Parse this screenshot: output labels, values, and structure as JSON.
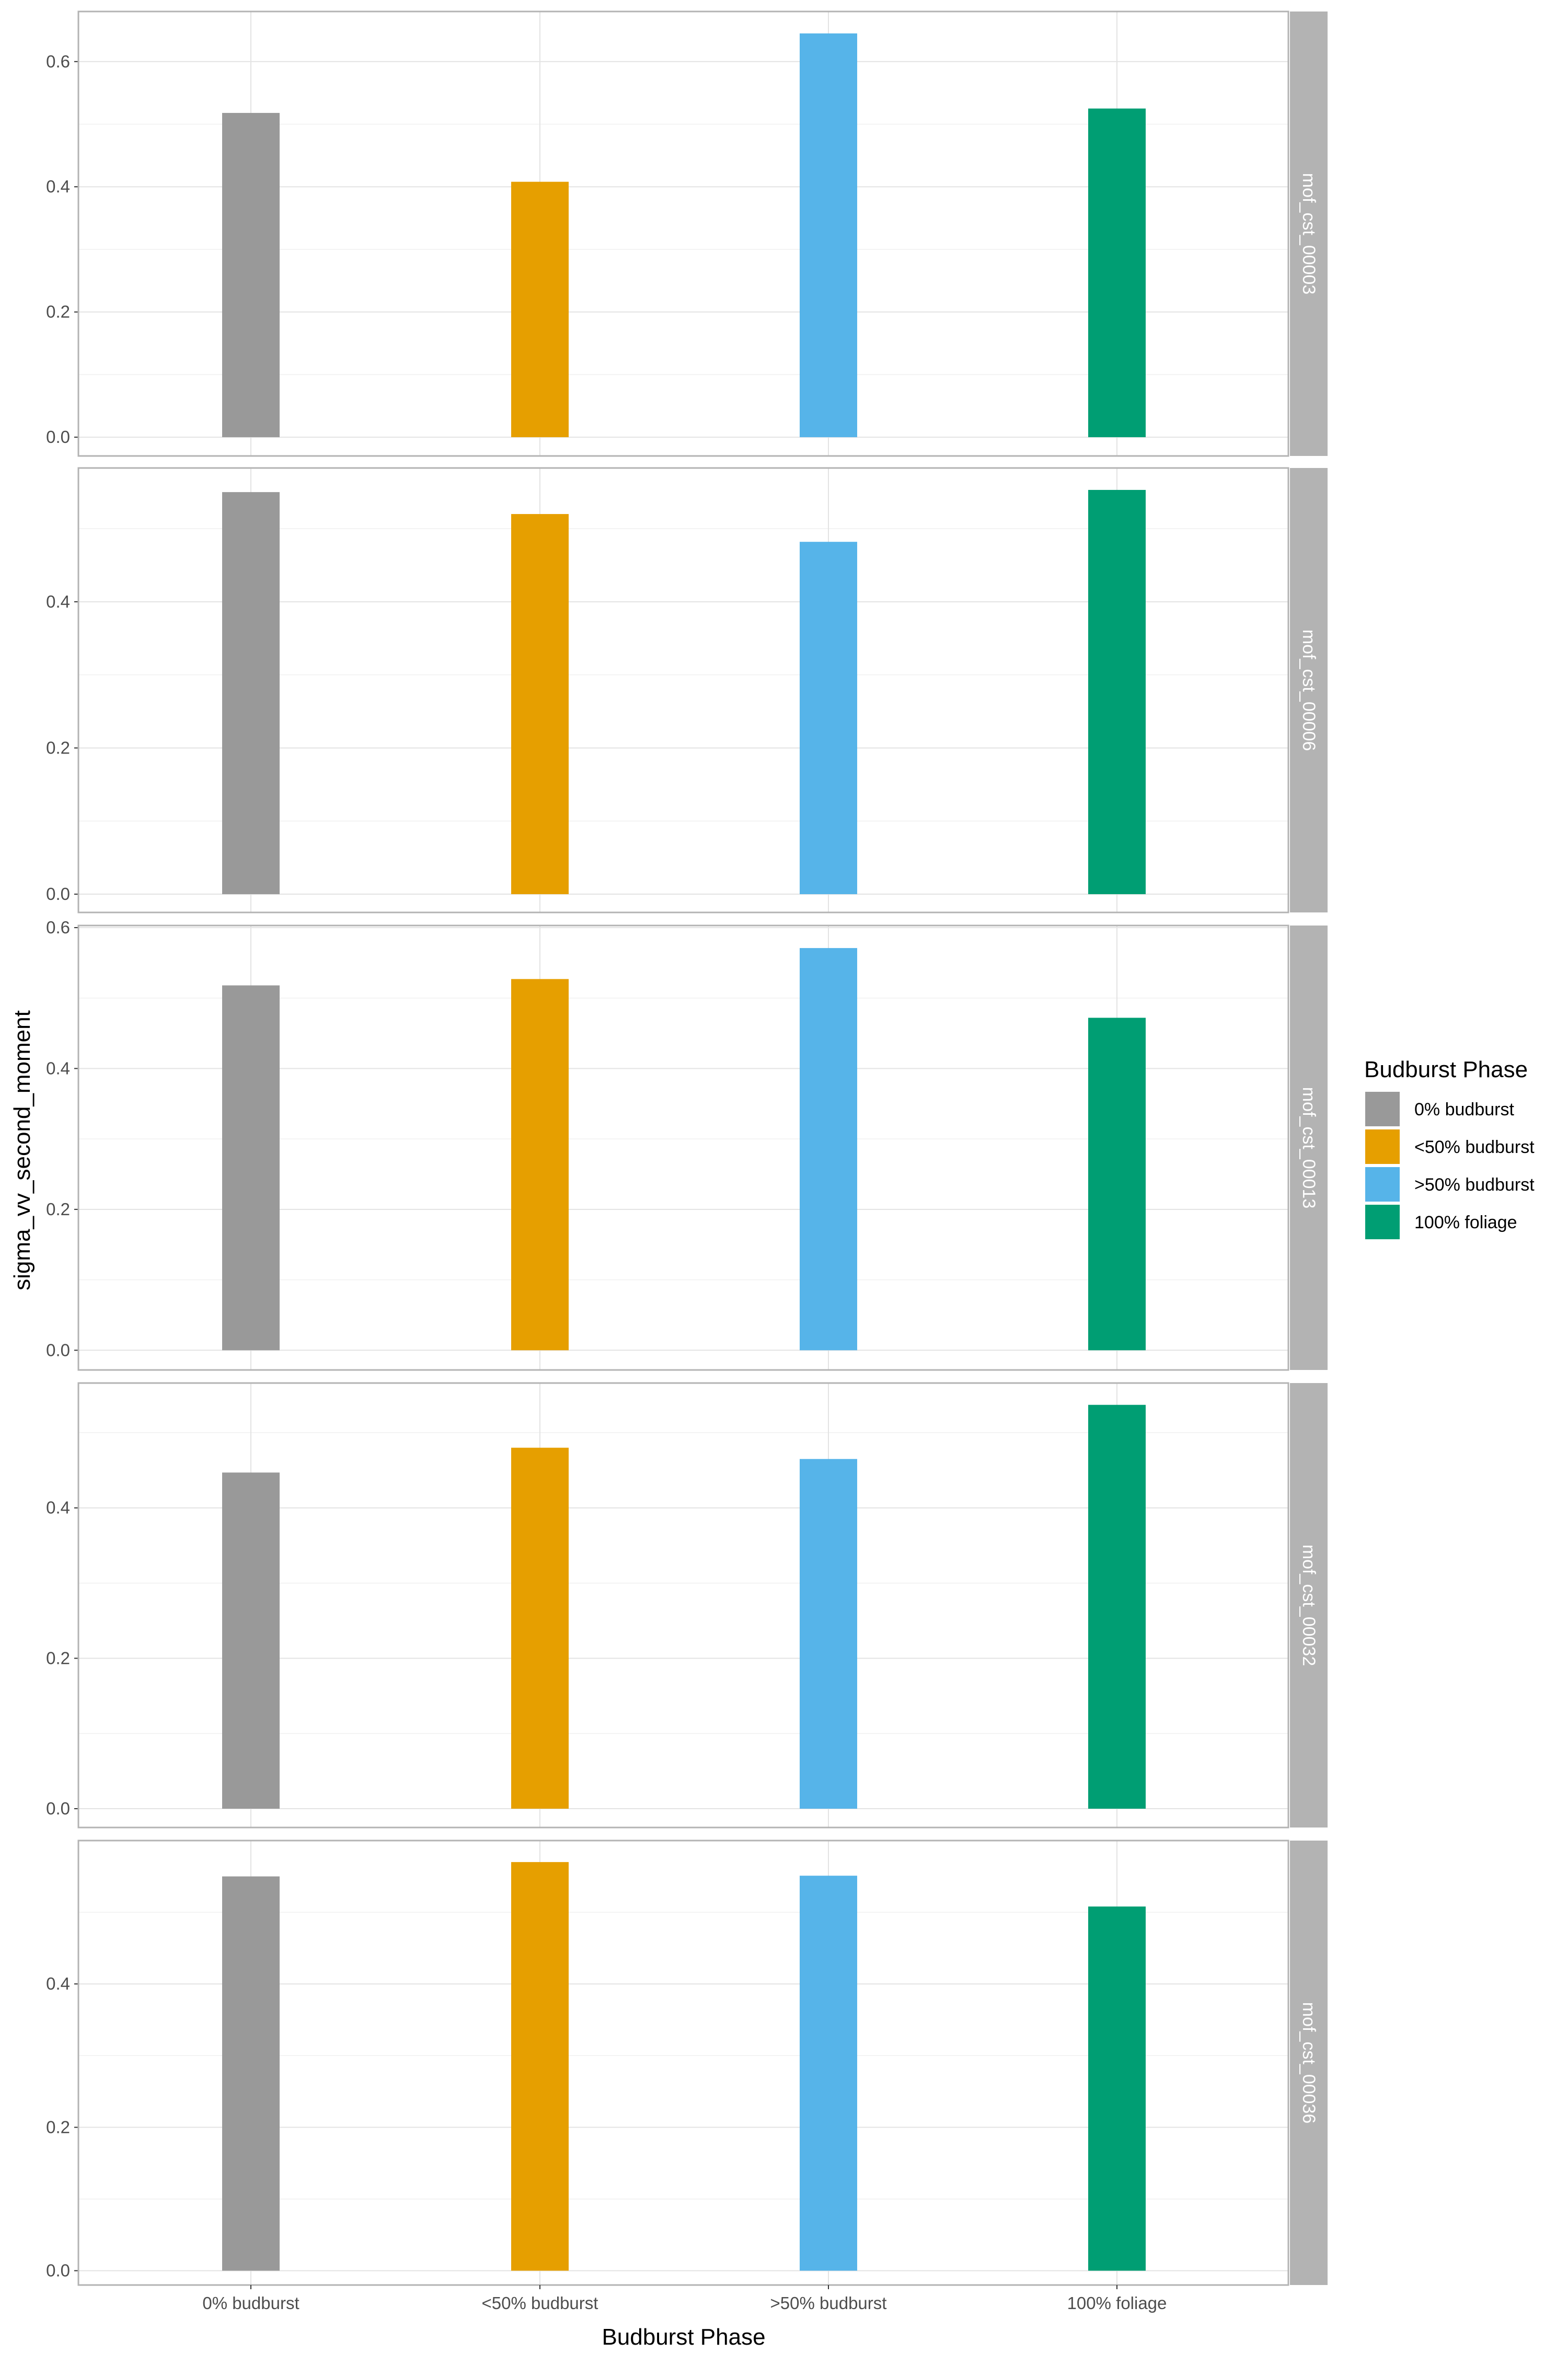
{
  "chart_data": {
    "type": "bar",
    "xlabel": "Budburst Phase",
    "ylabel": "sigma_vv_second_moment",
    "categories": [
      "0% budburst",
      "<50% budburst",
      ">50% budburst",
      "100% foliage"
    ],
    "colors": [
      "#999999",
      "#E69F00",
      "#56B4E9",
      "#009E73"
    ],
    "legend": {
      "title": "Budburst Phase",
      "entries": [
        "0% budburst",
        "<50% budburst",
        ">50% budburst",
        "100% foliage"
      ],
      "placement": "right"
    },
    "grid": true,
    "facets": [
      {
        "label": "mof_cst_00003",
        "values": [
          0.518,
          0.408,
          0.645,
          0.525
        ],
        "ylim": [
          -0.03,
          0.68
        ],
        "yticks": [
          0.0,
          0.2,
          0.4,
          0.6
        ]
      },
      {
        "label": "mof_cst_00006",
        "values": [
          0.55,
          0.52,
          0.482,
          0.553
        ],
        "ylim": [
          -0.025,
          0.583
        ],
        "yticks": [
          0.0,
          0.2,
          0.4
        ]
      },
      {
        "label": "mof_cst_00013",
        "values": [
          0.518,
          0.527,
          0.571,
          0.472
        ],
        "ylim": [
          -0.028,
          0.603
        ],
        "yticks": [
          0.0,
          0.2,
          0.4,
          0.6
        ]
      },
      {
        "label": "mof_cst_00032",
        "values": [
          0.447,
          0.48,
          0.465,
          0.537
        ],
        "ylim": [
          -0.025,
          0.566
        ],
        "yticks": [
          0.0,
          0.2,
          0.4
        ]
      },
      {
        "label": "mof_cst_00036",
        "values": [
          0.55,
          0.57,
          0.551,
          0.508
        ],
        "ylim": [
          -0.02,
          0.6
        ],
        "yticks": [
          0.0,
          0.2,
          0.4
        ]
      }
    ]
  }
}
